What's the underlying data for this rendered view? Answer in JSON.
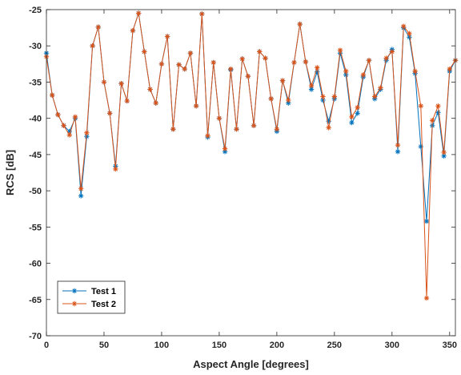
{
  "chart_data": {
    "type": "line",
    "title": "",
    "xlabel": "Aspect Angle [degrees]",
    "ylabel": "RCS [dB]",
    "xlim": [
      0,
      355
    ],
    "ylim": [
      -70,
      -25
    ],
    "xticks": [
      0,
      50,
      100,
      150,
      200,
      250,
      300,
      350
    ],
    "yticks": [
      -70,
      -65,
      -60,
      -55,
      -50,
      -45,
      -40,
      -35,
      -30,
      -25
    ],
    "grid": false,
    "legend_position": "bottom-left",
    "x": [
      0,
      5,
      10,
      15,
      20,
      25,
      30,
      35,
      40,
      45,
      50,
      55,
      60,
      65,
      70,
      75,
      80,
      85,
      90,
      95,
      100,
      105,
      110,
      115,
      120,
      125,
      130,
      135,
      140,
      145,
      150,
      155,
      160,
      165,
      170,
      175,
      180,
      185,
      190,
      195,
      200,
      205,
      210,
      215,
      220,
      225,
      230,
      235,
      240,
      245,
      250,
      255,
      260,
      265,
      270,
      275,
      280,
      285,
      290,
      295,
      300,
      305,
      310,
      315,
      320,
      325,
      330,
      335,
      340,
      345,
      350,
      355
    ],
    "series": [
      {
        "name": "Test 1",
        "color": "#0072BD",
        "marker": "*",
        "values": [
          -31.0,
          -36.8,
          -39.5,
          -41.0,
          -41.8,
          -40.0,
          -50.7,
          -42.5,
          -30.0,
          -27.4,
          -35.0,
          -39.3,
          -46.6,
          -35.2,
          -37.6,
          -27.9,
          -25.5,
          -30.8,
          -36.0,
          -37.9,
          -32.5,
          -28.7,
          -41.5,
          -32.6,
          -33.2,
          -31.0,
          -38.3,
          -25.6,
          -42.6,
          -32.3,
          -40.0,
          -44.6,
          -33.3,
          -41.5,
          -31.8,
          -34.2,
          -41.0,
          -30.8,
          -31.7,
          -37.3,
          -41.8,
          -34.8,
          -37.9,
          -32.3,
          -27.0,
          -32.2,
          -36.0,
          -33.6,
          -37.5,
          -40.4,
          -37.3,
          -31.0,
          -34.0,
          -40.6,
          -39.3,
          -34.3,
          -32.0,
          -37.3,
          -36.0,
          -32.0,
          -30.5,
          -44.6,
          -27.5,
          -28.8,
          -33.8,
          -43.9,
          -54.2,
          -41.0,
          -39.2,
          -45.2,
          -33.5,
          -32.0
        ]
      },
      {
        "name": "Test 2",
        "color": "#D95319",
        "marker": "*",
        "values": [
          -31.5,
          -36.8,
          -39.5,
          -41.0,
          -42.3,
          -39.8,
          -49.7,
          -42.0,
          -30.0,
          -27.4,
          -35.0,
          -39.3,
          -47.0,
          -35.2,
          -37.6,
          -27.9,
          -25.5,
          -30.8,
          -36.0,
          -37.9,
          -32.5,
          -28.7,
          -41.5,
          -32.6,
          -33.2,
          -31.0,
          -38.3,
          -25.6,
          -42.4,
          -32.3,
          -40.0,
          -44.2,
          -33.2,
          -41.5,
          -31.8,
          -34.2,
          -41.0,
          -30.8,
          -31.7,
          -37.3,
          -41.5,
          -34.8,
          -37.5,
          -32.3,
          -27.0,
          -32.2,
          -35.5,
          -33.0,
          -37.0,
          -41.3,
          -37.0,
          -30.6,
          -33.5,
          -39.8,
          -38.5,
          -34.0,
          -32.0,
          -37.0,
          -35.8,
          -31.7,
          -30.8,
          -43.7,
          -27.3,
          -28.3,
          -33.5,
          -38.3,
          -64.8,
          -40.3,
          -38.3,
          -44.7,
          -33.2,
          -32.0
        ]
      }
    ]
  }
}
